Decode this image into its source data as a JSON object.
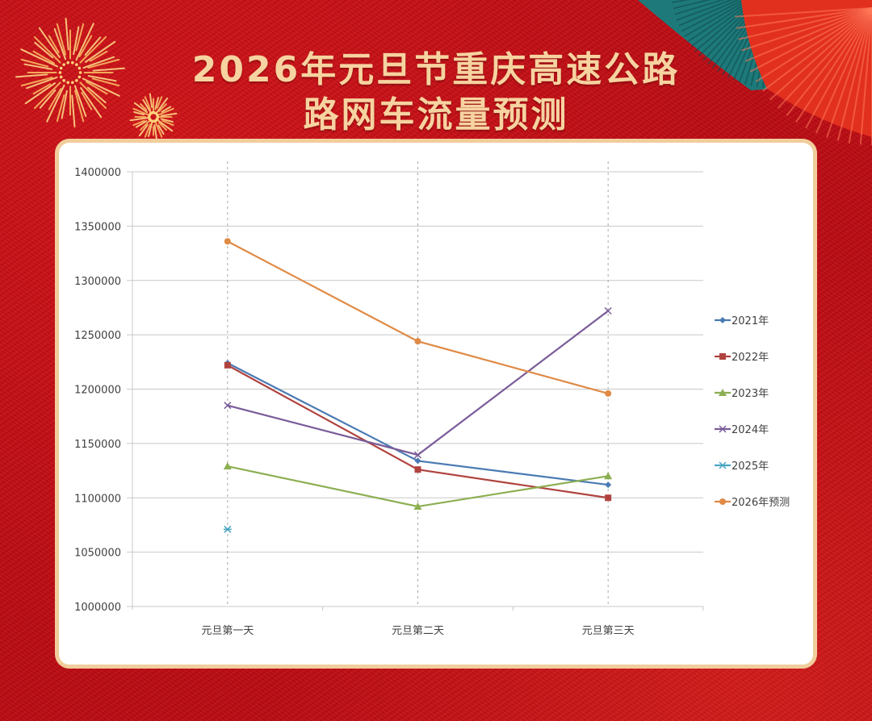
{
  "header": {
    "title_line1": "2026年元旦节重庆高速公路",
    "title_line2": "路网车流量预测"
  },
  "colors": {
    "background": "#c8101a",
    "title_gold": "#f6d3a0",
    "card_border": "#f1cd9c"
  },
  "chart_data": {
    "type": "line",
    "title": "2026年元旦节重庆高速公路路网车流量预测",
    "xlabel": "",
    "ylabel": "",
    "categories": [
      "元旦第一天",
      "元旦第二天",
      "元旦第三天"
    ],
    "ylim": [
      1000000,
      1400000
    ],
    "yticks": [
      "1400000",
      "1350000",
      "1300000",
      "1250000",
      "1200000",
      "1150000",
      "1100000",
      "1050000",
      "1000000"
    ],
    "grid": true,
    "legend_position": "right",
    "series": [
      {
        "name": "2021年",
        "color": "#4a7ab3",
        "marker": "diamond",
        "values": [
          1224000,
          1134000,
          1112000
        ]
      },
      {
        "name": "2022年",
        "color": "#b0433f",
        "marker": "square",
        "values": [
          1222000,
          1126000,
          1100000
        ]
      },
      {
        "name": "2023年",
        "color": "#8caf52",
        "marker": "triangle",
        "values": [
          1129000,
          1092000,
          1120000
        ]
      },
      {
        "name": "2024年",
        "color": "#7a5c99",
        "marker": "x",
        "values": [
          1185000,
          1139500,
          1272000
        ]
      },
      {
        "name": "2025年",
        "color": "#4aa6c2",
        "marker": "star",
        "values": [
          1071000,
          null,
          null
        ]
      },
      {
        "name": "2026年预测",
        "color": "#e08a45",
        "marker": "circle",
        "values": [
          1336000,
          1244000,
          1196000
        ]
      }
    ]
  }
}
